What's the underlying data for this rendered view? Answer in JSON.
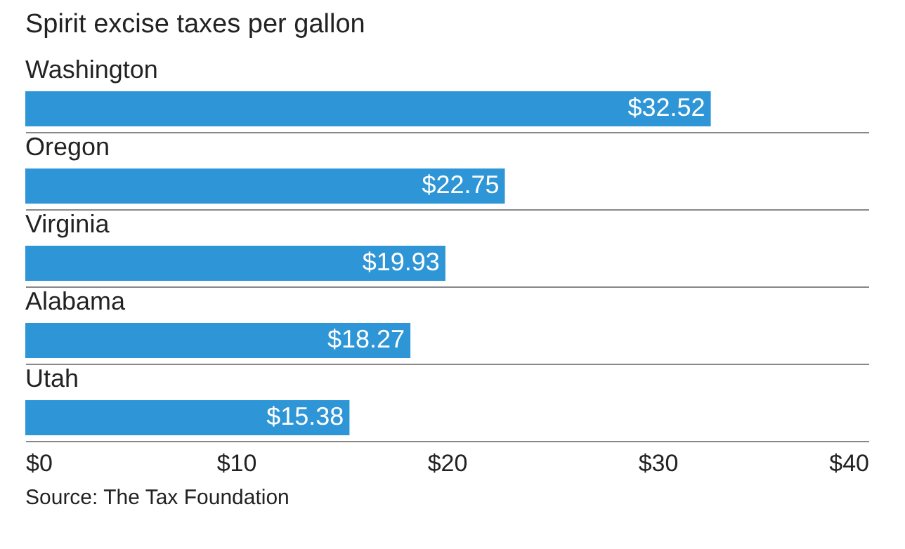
{
  "chart_data": {
    "type": "bar",
    "orientation": "horizontal",
    "title": "Spirit excise taxes per gallon",
    "categories": [
      "Washington",
      "Oregon",
      "Virginia",
      "Alabama",
      "Utah"
    ],
    "values": [
      32.52,
      22.75,
      19.93,
      18.27,
      15.38
    ],
    "value_labels": [
      "$32.52",
      "$22.75",
      "$19.93",
      "$18.27",
      "$15.38"
    ],
    "color": "#2e96d6",
    "xlim": [
      0,
      40
    ],
    "xticks": [
      {
        "value": 0,
        "label": "$0"
      },
      {
        "value": 10,
        "label": "$10"
      },
      {
        "value": 20,
        "label": "$20"
      },
      {
        "value": 30,
        "label": "$30"
      },
      {
        "value": 40,
        "label": "$40"
      }
    ],
    "grid": "y",
    "annotations": [
      "Source: The Tax Foundation"
    ]
  }
}
